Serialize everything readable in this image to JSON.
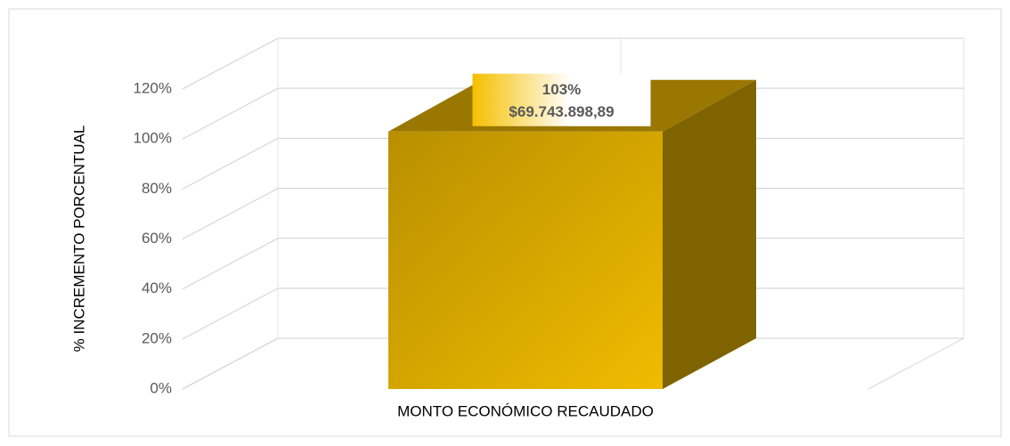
{
  "chart_data": {
    "type": "bar",
    "categories": [
      "MONTO ECONÓMICO RECAUDADO"
    ],
    "values": [
      103
    ],
    "value_labels": [
      "103%"
    ],
    "annotations": [
      "$69.743.898,89"
    ],
    "color": "#d4a600",
    "y_label": "% INCREMENTO PORCENTUAL",
    "ylim": [
      0,
      120
    ],
    "yticks": [
      {
        "value": 0,
        "label": "0%"
      },
      {
        "value": 20,
        "label": "20%"
      },
      {
        "value": 40,
        "label": "40%"
      },
      {
        "value": 60,
        "label": "60%"
      },
      {
        "value": 80,
        "label": "80%"
      },
      {
        "value": 100,
        "label": "100%"
      },
      {
        "value": 120,
        "label": "120%"
      }
    ],
    "grid": true
  }
}
